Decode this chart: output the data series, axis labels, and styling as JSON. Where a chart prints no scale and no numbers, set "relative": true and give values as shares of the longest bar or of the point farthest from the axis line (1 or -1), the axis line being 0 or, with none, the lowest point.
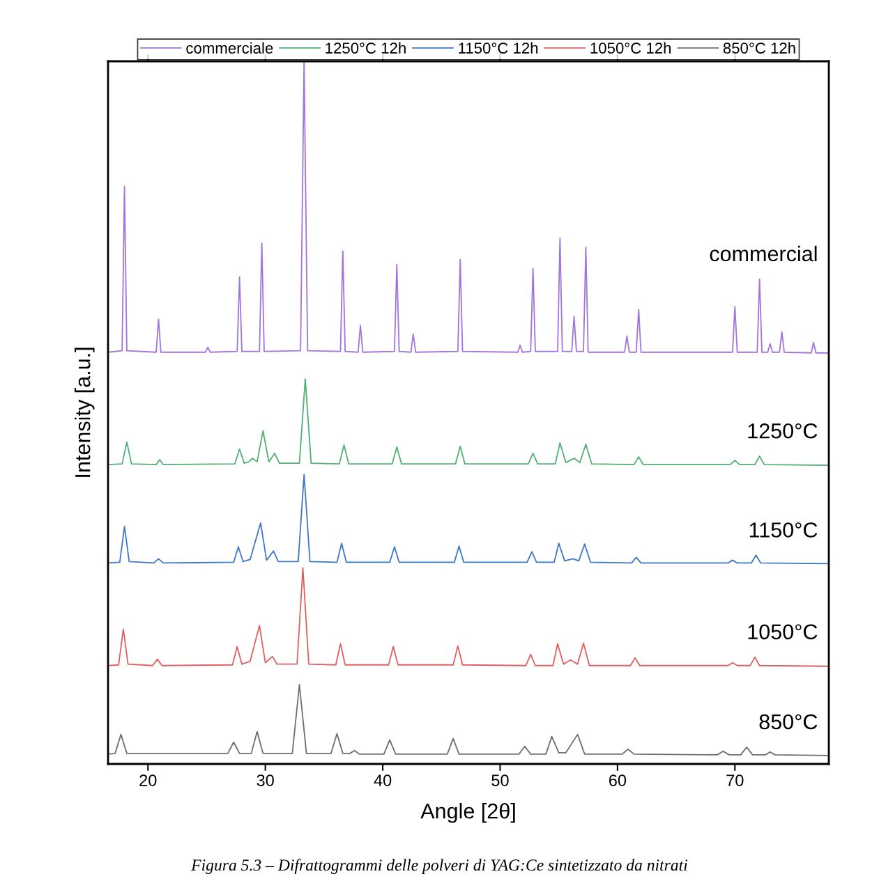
{
  "chart_data": {
    "type": "line",
    "relative": true,
    "xlabel": "Angle [2θ]",
    "ylabel": "Intensity [a.u.]",
    "xlim": [
      16.6,
      78.0
    ],
    "xticks": [
      20,
      30,
      40,
      50,
      60,
      70
    ],
    "grid": false,
    "legend": "top",
    "marker": "none",
    "line_style": "solid",
    "series": [
      {
        "name": "commerciale",
        "color": "#a274dc",
        "x": [
          16.6,
          17.8,
          18.0,
          18.2,
          20.7,
          20.9,
          21.1,
          24.9,
          25.1,
          25.3,
          27.6,
          27.8,
          28.0,
          29.5,
          29.7,
          29.9,
          33.0,
          33.3,
          33.6,
          36.4,
          36.6,
          36.8,
          37.9,
          38.1,
          38.3,
          41.0,
          41.2,
          41.4,
          42.4,
          42.6,
          42.8,
          46.4,
          46.6,
          46.8,
          51.5,
          51.7,
          51.9,
          52.6,
          52.8,
          53.0,
          54.9,
          55.1,
          55.3,
          56.1,
          56.3,
          56.5,
          57.1,
          57.3,
          57.5,
          60.6,
          60.8,
          61.0,
          61.6,
          61.8,
          62.0,
          69.8,
          70.0,
          70.2,
          71.9,
          72.1,
          72.3,
          72.8,
          73.0,
          73.2,
          73.8,
          74.0,
          74.2,
          76.5,
          76.7,
          76.9,
          78.0
        ],
        "values": [
          0.586,
          0.588,
          0.822,
          0.588,
          0.586,
          0.633,
          0.586,
          0.586,
          0.593,
          0.586,
          0.587,
          0.693,
          0.587,
          0.587,
          0.741,
          0.587,
          0.588,
          1.0,
          0.588,
          0.587,
          0.73,
          0.587,
          0.586,
          0.624,
          0.586,
          0.587,
          0.711,
          0.587,
          0.586,
          0.612,
          0.586,
          0.587,
          0.718,
          0.587,
          0.586,
          0.596,
          0.586,
          0.587,
          0.705,
          0.587,
          0.587,
          0.748,
          0.587,
          0.587,
          0.637,
          0.587,
          0.587,
          0.735,
          0.586,
          0.586,
          0.609,
          0.586,
          0.586,
          0.647,
          0.586,
          0.586,
          0.651,
          0.586,
          0.586,
          0.69,
          0.586,
          0.586,
          0.598,
          0.586,
          0.586,
          0.615,
          0.586,
          0.585,
          0.6,
          0.585,
          0.585
        ]
      },
      {
        "name": "1250°C 12h",
        "color": "#52b074",
        "x": [
          16.6,
          17.8,
          18.2,
          18.6,
          20.7,
          21.0,
          21.3,
          27.4,
          27.8,
          28.2,
          28.6,
          28.9,
          29.3,
          29.8,
          30.3,
          30.8,
          31.2,
          32.9,
          33.4,
          33.9,
          36.3,
          36.7,
          37.1,
          40.8,
          41.2,
          41.6,
          46.2,
          46.6,
          47.0,
          52.4,
          52.8,
          53.2,
          54.7,
          55.1,
          55.6,
          56.3,
          56.8,
          57.3,
          57.8,
          61.4,
          61.8,
          62.2,
          69.6,
          70.0,
          70.4,
          71.7,
          72.1,
          72.5,
          78.0
        ],
        "values": [
          0.426,
          0.427,
          0.458,
          0.427,
          0.426,
          0.433,
          0.426,
          0.427,
          0.448,
          0.428,
          0.43,
          0.435,
          0.43,
          0.474,
          0.43,
          0.442,
          0.428,
          0.428,
          0.548,
          0.428,
          0.427,
          0.454,
          0.427,
          0.427,
          0.451,
          0.427,
          0.427,
          0.452,
          0.427,
          0.427,
          0.442,
          0.427,
          0.427,
          0.457,
          0.429,
          0.435,
          0.429,
          0.455,
          0.427,
          0.426,
          0.437,
          0.426,
          0.426,
          0.432,
          0.426,
          0.426,
          0.438,
          0.426,
          0.425
        ]
      },
      {
        "name": "1150°C 12h",
        "color": "#3d78c8",
        "x": [
          16.6,
          17.6,
          18.0,
          18.4,
          20.5,
          20.9,
          21.3,
          27.3,
          27.7,
          28.1,
          28.7,
          29.6,
          30.1,
          30.7,
          31.1,
          32.8,
          33.3,
          33.8,
          36.1,
          36.5,
          36.9,
          40.6,
          41.0,
          41.4,
          46.1,
          46.5,
          46.9,
          52.3,
          52.7,
          53.1,
          54.6,
          55.0,
          55.5,
          56.2,
          56.7,
          57.2,
          57.7,
          61.2,
          61.6,
          62.0,
          69.4,
          69.8,
          70.2,
          71.4,
          71.8,
          72.2,
          78.0
        ],
        "values": [
          0.286,
          0.287,
          0.338,
          0.288,
          0.286,
          0.292,
          0.286,
          0.287,
          0.309,
          0.288,
          0.291,
          0.343,
          0.29,
          0.303,
          0.288,
          0.288,
          0.412,
          0.288,
          0.287,
          0.314,
          0.287,
          0.287,
          0.309,
          0.287,
          0.287,
          0.31,
          0.287,
          0.287,
          0.302,
          0.287,
          0.287,
          0.314,
          0.289,
          0.292,
          0.289,
          0.313,
          0.287,
          0.286,
          0.294,
          0.286,
          0.286,
          0.29,
          0.286,
          0.286,
          0.297,
          0.286,
          0.285
        ]
      },
      {
        "name": "1050°C 12h",
        "color": "#e0605f",
        "x": [
          16.6,
          17.5,
          17.9,
          18.3,
          20.4,
          20.8,
          21.2,
          27.2,
          27.6,
          28.0,
          28.7,
          29.5,
          30.0,
          30.6,
          31.0,
          32.7,
          33.2,
          33.7,
          36.0,
          36.4,
          36.8,
          40.5,
          40.9,
          41.3,
          46.0,
          46.4,
          46.8,
          52.2,
          52.6,
          53.0,
          54.5,
          54.9,
          55.4,
          56.0,
          56.6,
          57.1,
          57.6,
          61.1,
          61.5,
          61.9,
          69.4,
          69.8,
          70.2,
          71.3,
          71.7,
          72.1,
          78.0
        ],
        "values": [
          0.14,
          0.141,
          0.192,
          0.142,
          0.14,
          0.149,
          0.14,
          0.141,
          0.167,
          0.142,
          0.146,
          0.197,
          0.144,
          0.153,
          0.142,
          0.142,
          0.279,
          0.142,
          0.141,
          0.171,
          0.141,
          0.141,
          0.167,
          0.141,
          0.141,
          0.168,
          0.141,
          0.14,
          0.156,
          0.14,
          0.14,
          0.171,
          0.142,
          0.148,
          0.142,
          0.172,
          0.14,
          0.14,
          0.151,
          0.14,
          0.14,
          0.144,
          0.14,
          0.14,
          0.152,
          0.14,
          0.139
        ]
      },
      {
        "name": "850°C 12h",
        "color": "#6e6e6e",
        "x": [
          16.6,
          17.2,
          17.7,
          18.2,
          26.8,
          27.3,
          27.8,
          28.8,
          29.3,
          29.8,
          32.3,
          32.9,
          33.5,
          35.6,
          36.1,
          36.6,
          37.2,
          37.6,
          38.0,
          40.1,
          40.6,
          41.1,
          45.5,
          46.0,
          46.5,
          51.6,
          52.1,
          52.6,
          53.9,
          54.4,
          55.0,
          55.6,
          56.6,
          57.2,
          60.4,
          60.9,
          61.4,
          68.5,
          69.0,
          69.5,
          70.5,
          71.0,
          71.5,
          72.6,
          73.0,
          73.4,
          78.0
        ],
        "values": [
          0.014,
          0.015,
          0.042,
          0.015,
          0.015,
          0.031,
          0.015,
          0.015,
          0.046,
          0.015,
          0.015,
          0.113,
          0.015,
          0.015,
          0.043,
          0.015,
          0.015,
          0.019,
          0.014,
          0.014,
          0.034,
          0.014,
          0.014,
          0.036,
          0.014,
          0.014,
          0.025,
          0.014,
          0.014,
          0.039,
          0.016,
          0.016,
          0.042,
          0.014,
          0.014,
          0.021,
          0.014,
          0.013,
          0.018,
          0.013,
          0.013,
          0.024,
          0.013,
          0.013,
          0.017,
          0.013,
          0.012
        ]
      }
    ],
    "annotations": [
      "commercial",
      "1250°C",
      "1150°C",
      "1050°C",
      "850°C",
      "Figura 5.3 – Difrattogrammi delle polveri di YAG:Ce sintetizzato da nitrati"
    ]
  }
}
